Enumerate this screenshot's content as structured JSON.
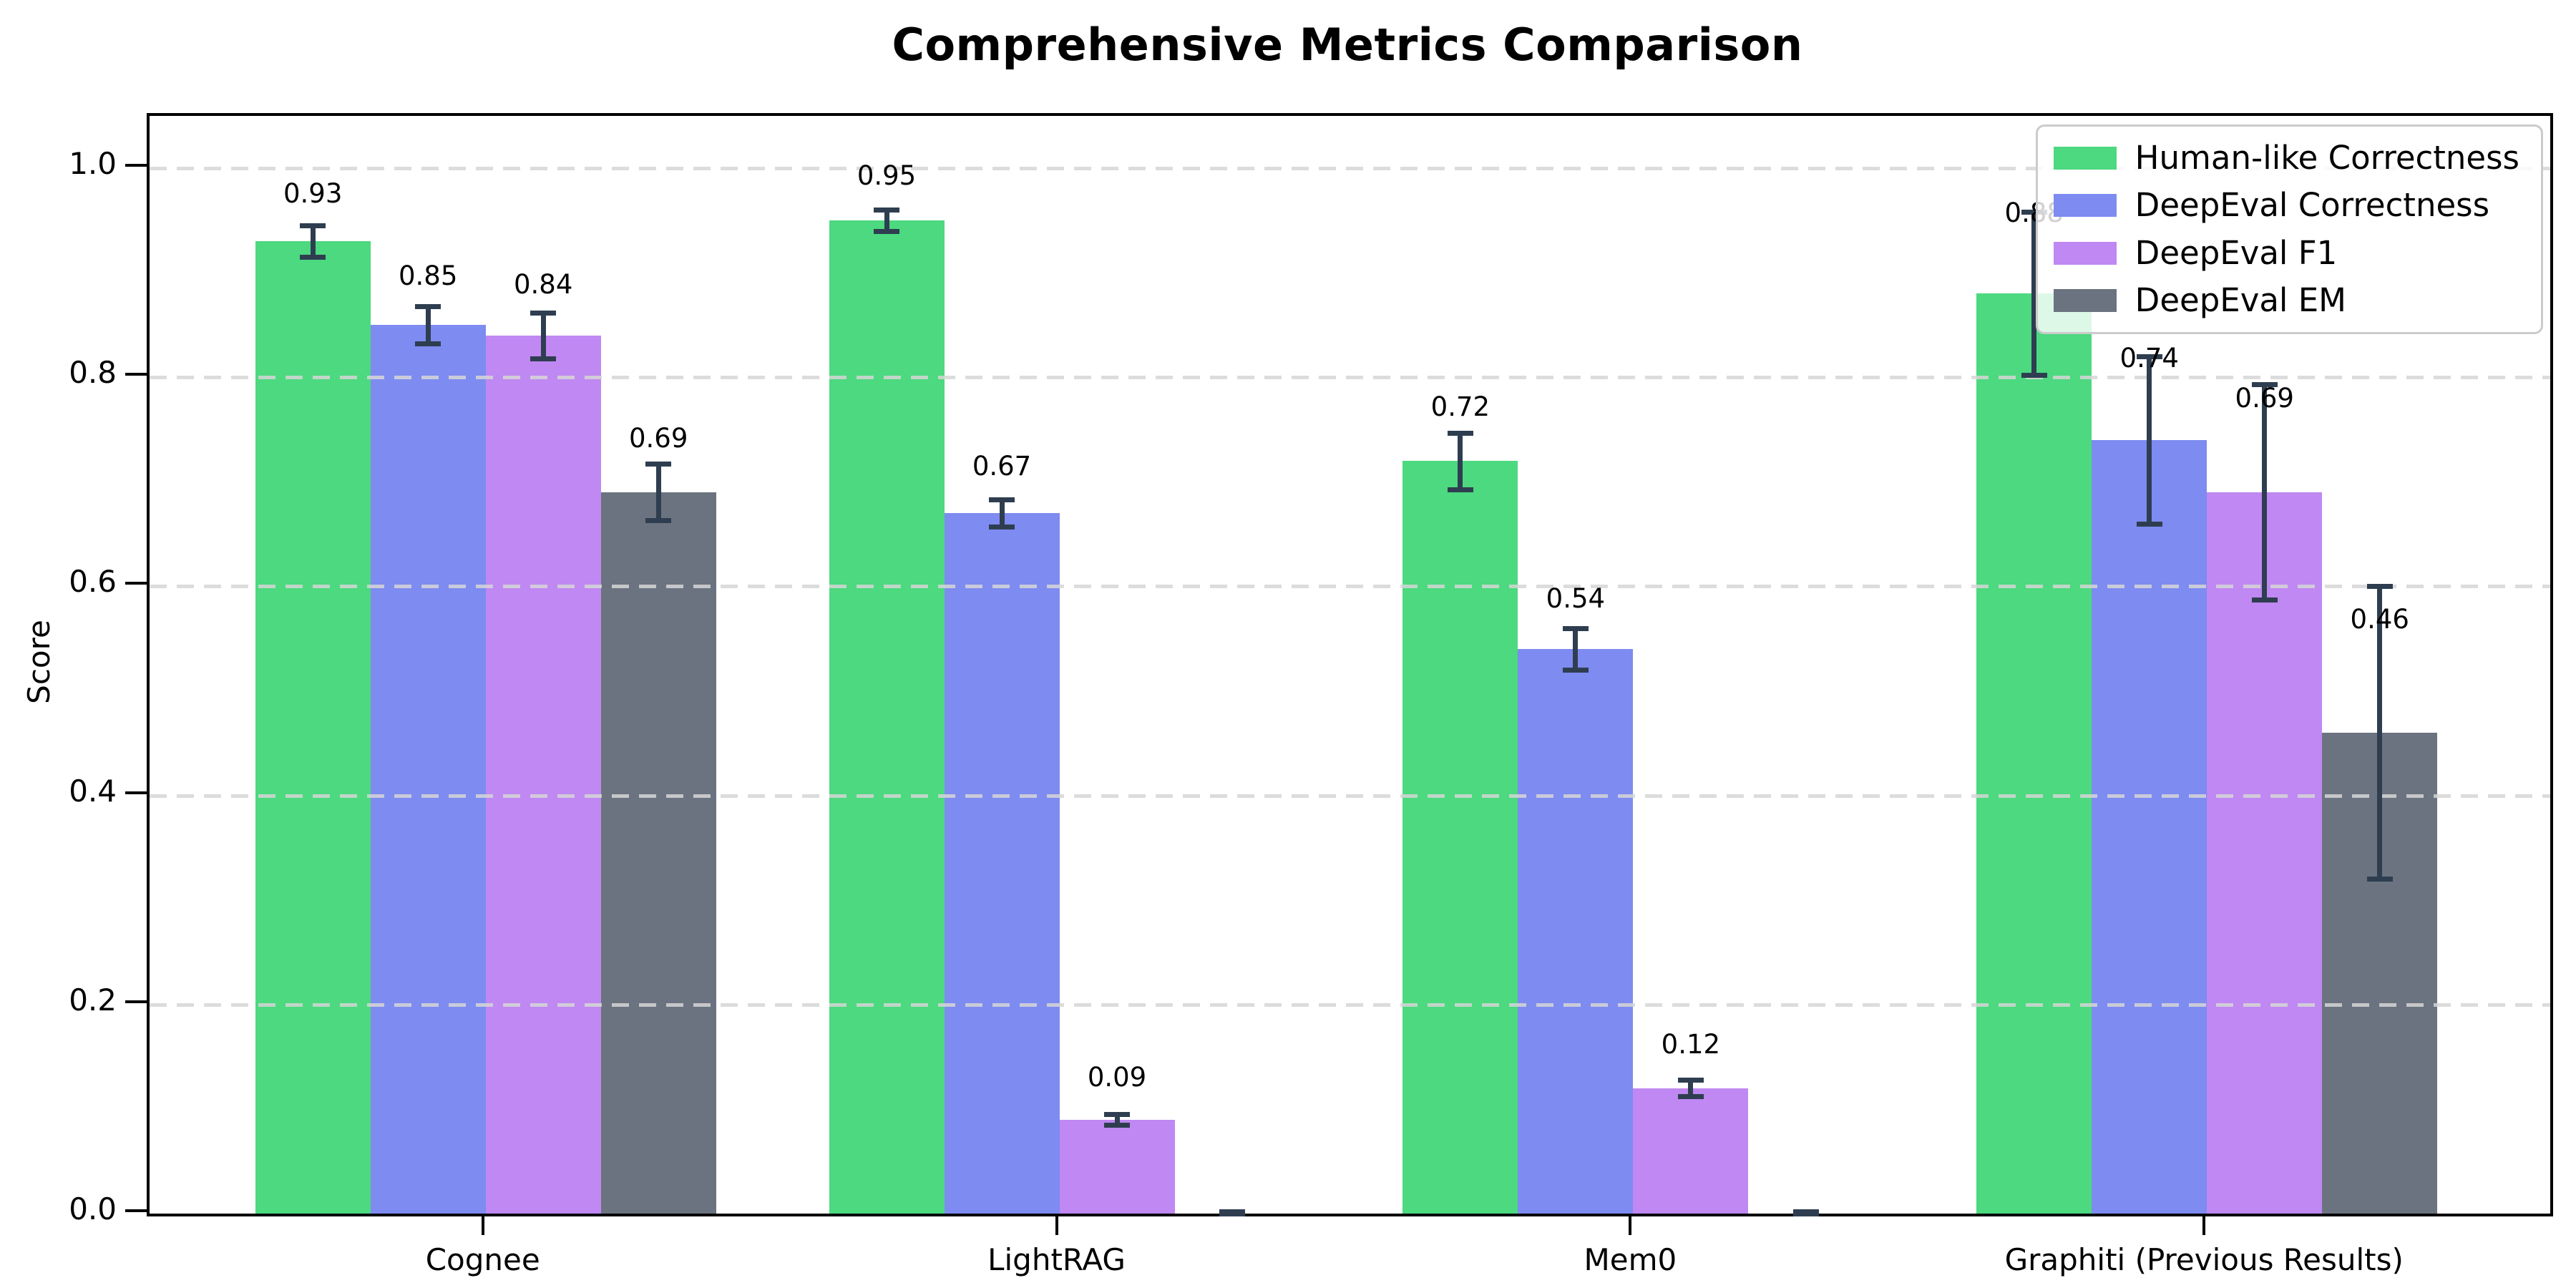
{
  "title": "Comprehensive Metrics Comparison",
  "chart_data": {
    "type": "bar",
    "title": "Comprehensive Metrics Comparison",
    "xlabel": "",
    "ylabel": "Score",
    "ylim": [
      0,
      1.05
    ],
    "yticks": [
      "0.0",
      "0.2",
      "0.4",
      "0.6",
      "0.8",
      "1.0"
    ],
    "ytick_values": [
      0.0,
      0.2,
      0.4,
      0.6,
      0.8,
      1.0
    ],
    "grid": "horizontal dashed, light gray, drawn over bars",
    "legend_position": "upper right",
    "background_color": "#ffffff",
    "error_bar_color": "#2e3e50",
    "categories": [
      "Cognee",
      "LightRAG",
      "Mem0",
      "Graphiti (Previous Results)"
    ],
    "series": [
      {
        "name": "Human-like Correctness",
        "color": "#4cd97f",
        "values": [
          0.93,
          0.95,
          0.72,
          0.88
        ],
        "errors": [
          0.015,
          0.01,
          0.027,
          0.078
        ],
        "value_labels": [
          "0.93",
          "0.95",
          "0.72",
          "0.88"
        ]
      },
      {
        "name": "DeepEval Correctness",
        "color": "#7e8bf0",
        "values": [
          0.85,
          0.67,
          0.54,
          0.74
        ],
        "errors": [
          0.018,
          0.013,
          0.02,
          0.08
        ],
        "value_labels": [
          "0.85",
          "0.67",
          "0.54",
          "0.74"
        ]
      },
      {
        "name": "DeepEval F1",
        "color": "#bf88f2",
        "values": [
          0.84,
          0.09,
          0.12,
          0.69
        ],
        "errors": [
          0.022,
          0.005,
          0.008,
          0.103
        ],
        "value_labels": [
          "0.84",
          "0.09",
          "0.12",
          "0.69"
        ]
      },
      {
        "name": "DeepEval EM",
        "color": "#6b7380",
        "values": [
          0.69,
          0.0,
          0.0,
          0.46
        ],
        "errors": [
          0.027,
          0.002,
          0.002,
          0.14
        ],
        "value_labels": [
          "0.69",
          "",
          "",
          "0.46"
        ]
      }
    ]
  }
}
